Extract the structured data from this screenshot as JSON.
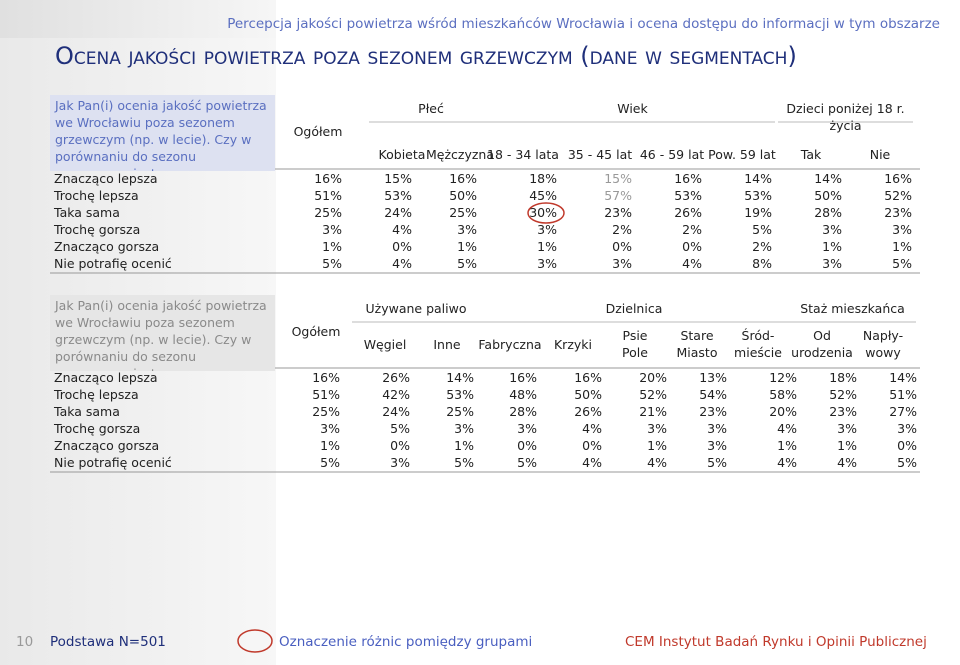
{
  "header": {
    "subtitle": "Percepcja jakości powietrza wśród mieszkańców Wrocławia i ocena dostępu do informacji w tym obszarze",
    "title": "Ocena jakości powietrza poza sezonem grzewczym (dane w segmentach)"
  },
  "tables": [
    {
      "question": "Jak Pan(i) ocenia jakość powietrza we Wrocławiu poza sezonem grzewczym (np. w lecie). Czy w porównaniu do sezonu grzewczego jest ona...",
      "total_label": "Ogółem",
      "groups": [
        {
          "label": "Płeć",
          "columns": [
            "Kobieta",
            "Mężczyzna"
          ]
        },
        {
          "label": "Wiek",
          "columns": [
            "18 - 34 lata",
            "35 - 45 lat",
            "46 - 59 lat",
            "Pow. 59 lat"
          ]
        },
        {
          "label": "Dzieci poniżej 18 r. życia",
          "columns": [
            "Tak",
            "Nie"
          ]
        }
      ],
      "rows": [
        {
          "label": "Znacząco lepsza",
          "cells": [
            "16%",
            "15%",
            "16%",
            "18%",
            "15%",
            "16%",
            "14%",
            "14%",
            "16%"
          ]
        },
        {
          "label": "Trochę lepsza",
          "cells": [
            "51%",
            "53%",
            "50%",
            "45%",
            "57%",
            "53%",
            "53%",
            "50%",
            "52%"
          ]
        },
        {
          "label": "Taka sama",
          "cells": [
            "25%",
            "24%",
            "25%",
            "30%",
            "23%",
            "26%",
            "19%",
            "28%",
            "23%"
          ]
        },
        {
          "label": "Trochę gorsza",
          "cells": [
            "3%",
            "4%",
            "3%",
            "3%",
            "2%",
            "2%",
            "5%",
            "3%",
            "3%"
          ]
        },
        {
          "label": "Znacząco gorsza",
          "cells": [
            "1%",
            "0%",
            "1%",
            "1%",
            "0%",
            "0%",
            "2%",
            "1%",
            "1%"
          ]
        },
        {
          "label": "Nie potrafię ocenić",
          "cells": [
            "5%",
            "4%",
            "5%",
            "3%",
            "3%",
            "4%",
            "8%",
            "3%",
            "5%"
          ]
        }
      ]
    },
    {
      "question": "Jak Pan(i) ocenia jakość powietrza we Wrocławiu poza sezonem grzewczym (np. w lecie). Czy w porównaniu do sezonu grzewczego jest ona...",
      "total_label": "Ogółem",
      "groups": [
        {
          "label": "Używane paliwo",
          "columns": [
            "Węgiel",
            "Inne"
          ]
        },
        {
          "label": "Dzielnica",
          "columns": [
            "Fabryczna",
            "Krzyki",
            "Psie\nPole",
            "Stare\nMiasto",
            "Śród-\nmieście"
          ]
        },
        {
          "label": "Staż mieszkańca",
          "columns": [
            "Od\nurodzenia",
            "Napły-\nwowy"
          ]
        }
      ],
      "rows": [
        {
          "label": "Znacząco lepsza",
          "cells": [
            "16%",
            "26%",
            "14%",
            "16%",
            "16%",
            "20%",
            "13%",
            "12%",
            "18%",
            "14%"
          ]
        },
        {
          "label": "Trochę lepsza",
          "cells": [
            "51%",
            "42%",
            "53%",
            "48%",
            "50%",
            "52%",
            "54%",
            "58%",
            "52%",
            "51%"
          ]
        },
        {
          "label": "Taka sama",
          "cells": [
            "25%",
            "24%",
            "25%",
            "28%",
            "26%",
            "21%",
            "23%",
            "20%",
            "23%",
            "27%"
          ]
        },
        {
          "label": "Trochę gorsza",
          "cells": [
            "3%",
            "5%",
            "3%",
            "3%",
            "4%",
            "3%",
            "3%",
            "4%",
            "3%",
            "3%"
          ]
        },
        {
          "label": "Znacząco gorsza",
          "cells": [
            "1%",
            "0%",
            "1%",
            "0%",
            "0%",
            "1%",
            "3%",
            "1%",
            "1%",
            "0%"
          ]
        },
        {
          "label": "Nie potrafię ocenić",
          "cells": [
            "5%",
            "3%",
            "5%",
            "5%",
            "4%",
            "4%",
            "5%",
            "4%",
            "4%",
            "5%"
          ]
        }
      ]
    }
  ],
  "footer": {
    "page": "10",
    "base": "Podstawa N=501",
    "legend": "Oznaczenie różnic pomiędzy grupami",
    "company": "CEM Instytut Badań Rynku i Opinii Publicznej"
  }
}
